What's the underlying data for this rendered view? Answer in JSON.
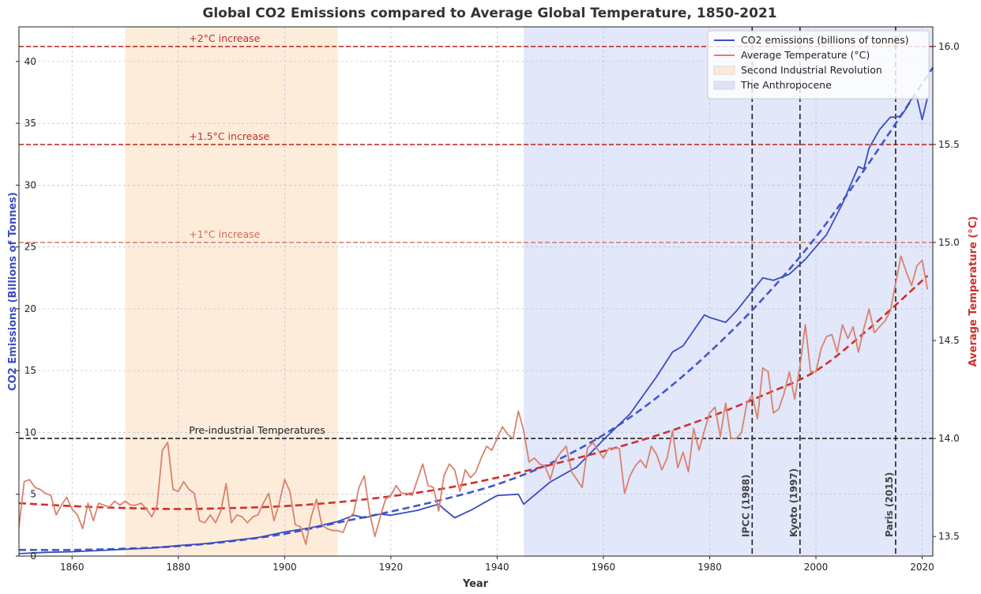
{
  "chart_data": {
    "type": "line",
    "title": "Global CO2 Emissions compared to Average Global Temperature, 1850-2021",
    "xlabel": "Year",
    "ylabel_left": "CO2 Emissions (Billions of Tonnes)",
    "ylabel_right": "Average Temperature (°C)",
    "xlim": [
      1850,
      2022
    ],
    "ylim_left": [
      0,
      42.8
    ],
    "ylim_right": [
      13.4,
      16.1
    ],
    "x_ticks": [
      1860,
      1880,
      1900,
      1920,
      1940,
      1960,
      1980,
      2000,
      2020
    ],
    "y_ticks_left": [
      0,
      5,
      10,
      15,
      20,
      25,
      30,
      35,
      40
    ],
    "y_ticks_right": [
      13.5,
      14.0,
      14.5,
      15.0,
      15.5,
      16.0
    ],
    "grid": true,
    "legend_position": "top-right",
    "colors": {
      "co2": "#3b4cc0",
      "temperature": "#d9826e",
      "co2_trend": "#4257c9",
      "temp_trend": "#d0302a",
      "second_ir": "#fde9d4",
      "anthropocene": "#dde3f8",
      "ref_lines": "#c0312b",
      "ref_1c": "#d9826e",
      "pre_industrial": "#222222",
      "event_lines": "#222222"
    },
    "series": [
      {
        "name": "CO2 emissions (billions of tonnes)",
        "axis": "left",
        "points": [
          [
            1850,
            0.2
          ],
          [
            1855,
            0.3
          ],
          [
            1860,
            0.35
          ],
          [
            1865,
            0.45
          ],
          [
            1870,
            0.55
          ],
          [
            1875,
            0.65
          ],
          [
            1880,
            0.85
          ],
          [
            1885,
            1.0
          ],
          [
            1890,
            1.25
          ],
          [
            1895,
            1.5
          ],
          [
            1900,
            1.95
          ],
          [
            1905,
            2.3
          ],
          [
            1910,
            2.8
          ],
          [
            1913,
            3.3
          ],
          [
            1915,
            3.1
          ],
          [
            1918,
            3.4
          ],
          [
            1920,
            3.3
          ],
          [
            1925,
            3.7
          ],
          [
            1929,
            4.2
          ],
          [
            1930,
            3.8
          ],
          [
            1932,
            3.1
          ],
          [
            1935,
            3.7
          ],
          [
            1940,
            4.9
          ],
          [
            1944,
            5.0
          ],
          [
            1945,
            4.2
          ],
          [
            1950,
            6.0
          ],
          [
            1955,
            7.2
          ],
          [
            1960,
            9.4
          ],
          [
            1965,
            11.5
          ],
          [
            1970,
            14.5
          ],
          [
            1973,
            16.5
          ],
          [
            1975,
            17.0
          ],
          [
            1979,
            19.5
          ],
          [
            1980,
            19.3
          ],
          [
            1983,
            18.9
          ],
          [
            1985,
            19.8
          ],
          [
            1990,
            22.5
          ],
          [
            1992,
            22.3
          ],
          [
            1995,
            22.8
          ],
          [
            1998,
            24.0
          ],
          [
            2000,
            25.0
          ],
          [
            2002,
            26.0
          ],
          [
            2005,
            28.5
          ],
          [
            2008,
            31.5
          ],
          [
            2009,
            31.3
          ],
          [
            2010,
            33.0
          ],
          [
            2012,
            34.5
          ],
          [
            2014,
            35.5
          ],
          [
            2015,
            35.5
          ],
          [
            2016,
            35.6
          ],
          [
            2017,
            36.2
          ],
          [
            2018,
            37.0
          ],
          [
            2019,
            37.1
          ],
          [
            2020,
            35.3
          ],
          [
            2021,
            37.1
          ]
        ]
      },
      {
        "name": "Average Temperature (°C)",
        "axis": "right",
        "points": [
          [
            1850,
            13.55
          ],
          [
            1851,
            13.78
          ],
          [
            1852,
            13.79
          ],
          [
            1853,
            13.75
          ],
          [
            1854,
            13.74
          ],
          [
            1855,
            13.72
          ],
          [
            1856,
            13.71
          ],
          [
            1857,
            13.61
          ],
          [
            1858,
            13.66
          ],
          [
            1859,
            13.7
          ],
          [
            1860,
            13.64
          ],
          [
            1861,
            13.61
          ],
          [
            1862,
            13.54
          ],
          [
            1863,
            13.67
          ],
          [
            1864,
            13.58
          ],
          [
            1865,
            13.67
          ],
          [
            1866,
            13.66
          ],
          [
            1867,
            13.65
          ],
          [
            1868,
            13.68
          ],
          [
            1869,
            13.66
          ],
          [
            1870,
            13.68
          ],
          [
            1871,
            13.66
          ],
          [
            1872,
            13.66
          ],
          [
            1873,
            13.67
          ],
          [
            1874,
            13.64
          ],
          [
            1875,
            13.6
          ],
          [
            1876,
            13.66
          ],
          [
            1877,
            13.94
          ],
          [
            1878,
            13.98
          ],
          [
            1879,
            13.74
          ],
          [
            1880,
            13.73
          ],
          [
            1881,
            13.78
          ],
          [
            1882,
            13.74
          ],
          [
            1883,
            13.72
          ],
          [
            1884,
            13.58
          ],
          [
            1885,
            13.57
          ],
          [
            1886,
            13.61
          ],
          [
            1887,
            13.57
          ],
          [
            1888,
            13.63
          ],
          [
            1889,
            13.77
          ],
          [
            1890,
            13.57
          ],
          [
            1891,
            13.61
          ],
          [
            1892,
            13.6
          ],
          [
            1893,
            13.57
          ],
          [
            1894,
            13.6
          ],
          [
            1895,
            13.61
          ],
          [
            1896,
            13.67
          ],
          [
            1897,
            13.72
          ],
          [
            1898,
            13.58
          ],
          [
            1899,
            13.67
          ],
          [
            1900,
            13.79
          ],
          [
            1901,
            13.73
          ],
          [
            1902,
            13.56
          ],
          [
            1903,
            13.55
          ],
          [
            1904,
            13.46
          ],
          [
            1905,
            13.6
          ],
          [
            1906,
            13.69
          ],
          [
            1907,
            13.56
          ],
          [
            1908,
            13.54
          ],
          [
            1909,
            13.53
          ],
          [
            1910,
            13.53
          ],
          [
            1911,
            13.52
          ],
          [
            1912,
            13.59
          ],
          [
            1913,
            13.62
          ],
          [
            1914,
            13.75
          ],
          [
            1915,
            13.81
          ],
          [
            1916,
            13.62
          ],
          [
            1917,
            13.5
          ],
          [
            1918,
            13.6
          ],
          [
            1919,
            13.69
          ],
          [
            1920,
            13.71
          ],
          [
            1921,
            13.76
          ],
          [
            1922,
            13.72
          ],
          [
            1923,
            13.72
          ],
          [
            1924,
            13.71
          ],
          [
            1925,
            13.79
          ],
          [
            1926,
            13.87
          ],
          [
            1927,
            13.76
          ],
          [
            1928,
            13.75
          ],
          [
            1929,
            13.63
          ],
          [
            1930,
            13.81
          ],
          [
            1931,
            13.87
          ],
          [
            1932,
            13.84
          ],
          [
            1933,
            13.73
          ],
          [
            1934,
            13.84
          ],
          [
            1935,
            13.8
          ],
          [
            1936,
            13.83
          ],
          [
            1937,
            13.9
          ],
          [
            1938,
            13.96
          ],
          [
            1939,
            13.94
          ],
          [
            1940,
            14.0
          ],
          [
            1941,
            14.06
          ],
          [
            1942,
            14.02
          ],
          [
            1943,
            14.0
          ],
          [
            1944,
            14.14
          ],
          [
            1945,
            14.04
          ],
          [
            1946,
            13.88
          ],
          [
            1947,
            13.9
          ],
          [
            1948,
            13.87
          ],
          [
            1949,
            13.86
          ],
          [
            1950,
            13.79
          ],
          [
            1951,
            13.89
          ],
          [
            1952,
            13.93
          ],
          [
            1953,
            13.96
          ],
          [
            1954,
            13.83
          ],
          [
            1955,
            13.79
          ],
          [
            1956,
            13.75
          ],
          [
            1957,
            13.95
          ],
          [
            1958,
            13.98
          ],
          [
            1959,
            13.94
          ],
          [
            1960,
            13.9
          ],
          [
            1961,
            13.95
          ],
          [
            1962,
            13.95
          ],
          [
            1963,
            13.95
          ],
          [
            1964,
            13.72
          ],
          [
            1965,
            13.81
          ],
          [
            1966,
            13.86
          ],
          [
            1967,
            13.89
          ],
          [
            1968,
            13.85
          ],
          [
            1969,
            13.96
          ],
          [
            1970,
            13.92
          ],
          [
            1971,
            13.84
          ],
          [
            1972,
            13.9
          ],
          [
            1973,
            14.04
          ],
          [
            1974,
            13.85
          ],
          [
            1975,
            13.93
          ],
          [
            1976,
            13.83
          ],
          [
            1977,
            14.05
          ],
          [
            1978,
            13.94
          ],
          [
            1979,
            14.04
          ],
          [
            1980,
            14.13
          ],
          [
            1981,
            14.16
          ],
          [
            1982,
            14.01
          ],
          [
            1983,
            14.18
          ],
          [
            1984,
            14.0
          ],
          [
            1985,
            14.0
          ],
          [
            1986,
            14.03
          ],
          [
            1987,
            14.18
          ],
          [
            1988,
            14.22
          ],
          [
            1989,
            14.1
          ],
          [
            1990,
            14.36
          ],
          [
            1991,
            14.34
          ],
          [
            1992,
            14.13
          ],
          [
            1993,
            14.15
          ],
          [
            1994,
            14.23
          ],
          [
            1995,
            14.34
          ],
          [
            1996,
            14.2
          ],
          [
            1997,
            14.37
          ],
          [
            1998,
            14.58
          ],
          [
            1999,
            14.34
          ],
          [
            2000,
            14.34
          ],
          [
            2001,
            14.46
          ],
          [
            2002,
            14.52
          ],
          [
            2003,
            14.53
          ],
          [
            2004,
            14.44
          ],
          [
            2005,
            14.58
          ],
          [
            2006,
            14.51
          ],
          [
            2007,
            14.57
          ],
          [
            2008,
            14.44
          ],
          [
            2009,
            14.56
          ],
          [
            2010,
            14.66
          ],
          [
            2011,
            14.54
          ],
          [
            2012,
            14.57
          ],
          [
            2013,
            14.6
          ],
          [
            2014,
            14.65
          ],
          [
            2015,
            14.79
          ],
          [
            2016,
            14.93
          ],
          [
            2017,
            14.85
          ],
          [
            2018,
            14.78
          ],
          [
            2019,
            14.88
          ],
          [
            2020,
            14.91
          ],
          [
            2021,
            14.76
          ]
        ]
      }
    ],
    "trends": [
      {
        "series": "CO2 emissions (billions of tonnes)",
        "axis": "left",
        "points": [
          [
            1850,
            0.5
          ],
          [
            1860,
            0.5
          ],
          [
            1870,
            0.6
          ],
          [
            1880,
            0.8
          ],
          [
            1890,
            1.2
          ],
          [
            1900,
            1.8
          ],
          [
            1910,
            2.7
          ],
          [
            1920,
            3.6
          ],
          [
            1930,
            4.6
          ],
          [
            1940,
            5.8
          ],
          [
            1950,
            7.5
          ],
          [
            1960,
            9.8
          ],
          [
            1970,
            12.8
          ],
          [
            1980,
            16.5
          ],
          [
            1990,
            20.8
          ],
          [
            2000,
            25.8
          ],
          [
            2010,
            31.8
          ],
          [
            2022,
            39.5
          ]
        ]
      },
      {
        "series": "Average Temperature (°C)",
        "axis": "right",
        "points": [
          [
            1850,
            13.67
          ],
          [
            1860,
            13.655
          ],
          [
            1870,
            13.645
          ],
          [
            1880,
            13.64
          ],
          [
            1890,
            13.645
          ],
          [
            1900,
            13.655
          ],
          [
            1910,
            13.675
          ],
          [
            1920,
            13.705
          ],
          [
            1930,
            13.745
          ],
          [
            1940,
            13.8
          ],
          [
            1950,
            13.865
          ],
          [
            1960,
            13.935
          ],
          [
            1970,
            14.015
          ],
          [
            1980,
            14.11
          ],
          [
            1990,
            14.22
          ],
          [
            2000,
            14.345
          ],
          [
            2010,
            14.56
          ],
          [
            2021,
            14.83
          ]
        ]
      }
    ],
    "reference_lines": [
      {
        "axis": "right",
        "value": 16.0,
        "label": "+2°C increase",
        "label_x": 1882
      },
      {
        "axis": "right",
        "value": 15.5,
        "label": "+1.5°C increase",
        "label_x": 1882
      },
      {
        "axis": "right",
        "value": 15.0,
        "label": "+1°C increase",
        "label_x": 1882
      },
      {
        "axis": "right",
        "value": 14.0,
        "label": "Pre-industrial Temperatures",
        "label_x": 1882
      }
    ],
    "events": [
      {
        "year": 1988,
        "label": "IPCC (1988)"
      },
      {
        "year": 1997,
        "label": "Kyoto (1997)"
      },
      {
        "year": 2015,
        "label": "Paris (2015)"
      }
    ],
    "spans": [
      {
        "start": 1870,
        "end": 1910,
        "label": "Second Industrial Revolution"
      },
      {
        "start": 1945,
        "end": 2022,
        "label": "The Anthropocene"
      }
    ],
    "legend": [
      "CO2 emissions (billions of tonnes)",
      "Average Temperature (°C)",
      "Second Industrial Revolution",
      "The Anthropocene"
    ]
  }
}
